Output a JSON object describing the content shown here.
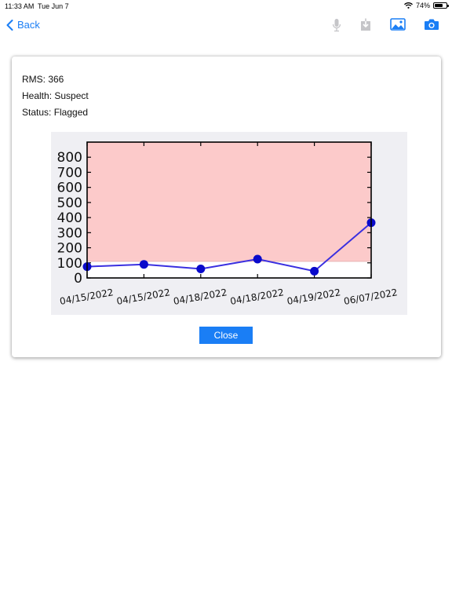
{
  "status_bar": {
    "time": "11:33 AM",
    "date": "Tue Jun 7",
    "battery_percent": "74%",
    "battery_level": 0.74
  },
  "nav": {
    "back_label": "Back",
    "icons": [
      "microphone-icon",
      "download-icon",
      "image-icon",
      "camera-icon"
    ],
    "accent_color": "#1a7ef5"
  },
  "card": {
    "rms": "RMS: 366",
    "health": "Health: Suspect",
    "status": "Status: Flagged",
    "close_label": "Close"
  },
  "chart_data": {
    "type": "line",
    "categories": [
      "04/15/2022",
      "04/15/2022",
      "04/18/2022",
      "04/18/2022",
      "04/19/2022",
      "06/07/2022"
    ],
    "values": [
      75,
      90,
      60,
      125,
      45,
      366
    ],
    "ylim": [
      0,
      900
    ],
    "yticks": [
      0,
      100,
      200,
      300,
      400,
      500,
      600,
      700,
      800
    ],
    "threshold": 110,
    "title": "",
    "xlabel": "",
    "ylabel": "",
    "grid": false,
    "line_color": "#3a2fe0",
    "marker_color": "#0a0acb",
    "alert_band_color": "#fccaca"
  }
}
